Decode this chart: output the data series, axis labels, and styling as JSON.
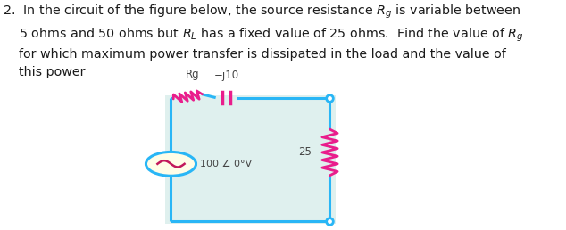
{
  "bg_color": "#dff0ee",
  "circuit_line_color": "#29b6f6",
  "component_color": "#e91e8c",
  "text_color": "#333333",
  "line_width": 2.2,
  "source_label": "100 ∠ 0°V",
  "rg_label": "Rg",
  "cap_label": "−j10",
  "rl_label": "25",
  "circuit_L": 0.355,
  "circuit_R": 0.685,
  "circuit_T": 0.575,
  "circuit_B": 0.04
}
